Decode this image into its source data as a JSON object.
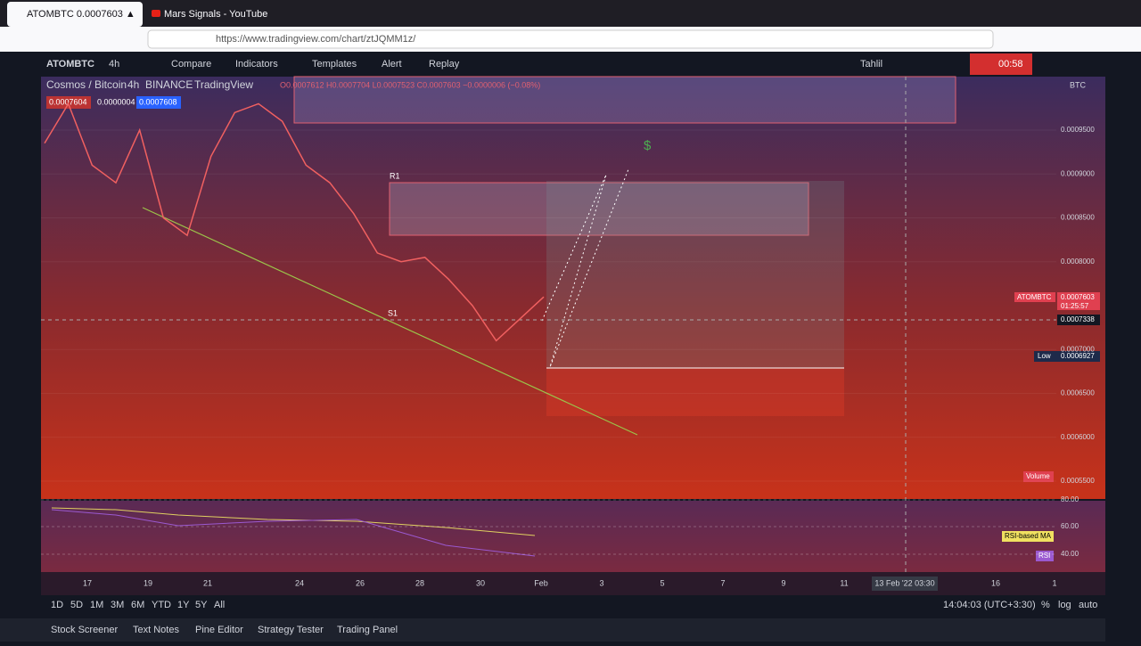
{
  "browser": {
    "tabs": [
      "ATOMBTC 0.0007603 ▲",
      "Mars Signals - YouTube"
    ],
    "url": "https://www.tradingview.com/chart/ztJQMM1z/"
  },
  "toolbar": {
    "symbol": "ATOMBTC",
    "interval": "4h",
    "buttons": [
      "Compare",
      "Indicators",
      "Templates",
      "Alert",
      "Replay"
    ],
    "layout": "Tahlil",
    "timer": "00:58"
  },
  "legend": {
    "name": "Cosmos / Bitcoin",
    "interval": "4h",
    "exchange": "BINANCE",
    "source": "TradingView",
    "ohlc": "O0.0007612 H0.0007704 L0.0007523 C0.0007603 −0.0000006 (−0.08%)",
    "bid": "0.0007604",
    "spread": "0.0000004",
    "ask": "0.0007608"
  },
  "drawings": {
    "resistance": "R1",
    "support": "S1",
    "target": "$"
  },
  "chart": {
    "currency": "BTC",
    "price_ticks": [
      {
        "value": 0.00095,
        "label": "0.0009500"
      },
      {
        "value": 0.0009,
        "label": "0.0009000"
      },
      {
        "value": 0.00085,
        "label": "0.0008500"
      },
      {
        "value": 0.0008,
        "label": "0.0008000"
      },
      {
        "value": 0.0007,
        "label": "0.0007000"
      },
      {
        "value": 0.00065,
        "label": "0.0006500"
      },
      {
        "value": 0.0006,
        "label": "0.0006000"
      },
      {
        "value": 0.00055,
        "label": "0.0005500"
      }
    ],
    "last": {
      "symbol": "ATOMBTC",
      "price": "0.0007603",
      "countdown": "01:25:57"
    },
    "crosshair": "0.0007338",
    "low": {
      "label": "Low",
      "price": "0.0006927"
    },
    "volume_label": "Volume",
    "closes": [
      0.000935,
      0.00098,
      0.00091,
      0.00089,
      0.00095,
      0.00085,
      0.00083,
      0.00092,
      0.00097,
      0.00098,
      0.00096,
      0.00091,
      0.00089,
      0.000855,
      0.00081,
      0.0008,
      0.000805,
      0.00078,
      0.00075,
      0.00071,
      0.000735,
      0.00076
    ],
    "time_ticks": [
      "17",
      "19",
      "21",
      "24",
      "26",
      "28",
      "30",
      "Feb",
      "3",
      "5",
      "7",
      "9",
      "11",
      "13 Feb '22  03:30",
      "16",
      "1"
    ]
  },
  "rsi": {
    "ticks": [
      "80.00",
      "60.00",
      "40.00"
    ],
    "ma_label": "RSI-based MA",
    "label": "RSI"
  },
  "bottom": {
    "ranges": [
      "1D",
      "5D",
      "1M",
      "3M",
      "6M",
      "YTD",
      "1Y",
      "5Y",
      "All"
    ],
    "clock": "14:04:03 (UTC+3:30)",
    "options": [
      "%",
      "log",
      "auto"
    ]
  },
  "panels": [
    "Stock Screener",
    "Text Notes",
    "Pine Editor",
    "Strategy Tester",
    "Trading Panel"
  ]
}
